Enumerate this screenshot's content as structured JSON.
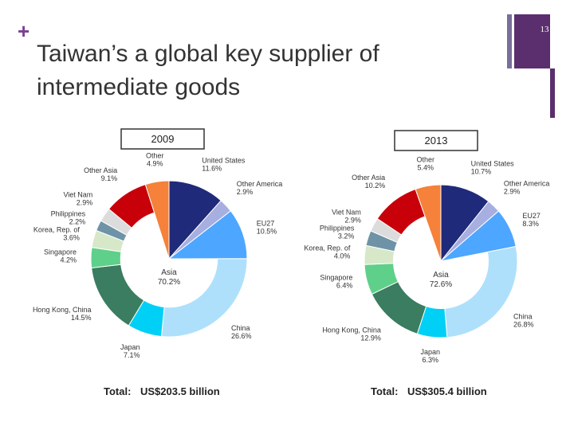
{
  "slide": {
    "marker": "+",
    "title_lines": [
      "Taiwan’s a global key supplier of",
      "intermediate goods"
    ],
    "page_number": "13"
  },
  "chart_data": [
    {
      "type": "pie",
      "title": "2009",
      "categories": [
        "United States",
        "Other America",
        "EU27",
        "China",
        "Japan",
        "Hong Kong, China",
        "Singapore",
        "Korea, Rep. of",
        "Philippines",
        "Viet Nam",
        "Other Asia",
        "Other"
      ],
      "values": [
        11.6,
        2.9,
        10.5,
        26.6,
        7.1,
        14.5,
        4.2,
        3.6,
        2.2,
        2.9,
        9.1,
        4.9
      ],
      "value_labels": [
        "11.6%",
        "2.9%",
        "10.5%",
        "26.6%",
        "7.1%",
        "14.5%",
        "4.2%",
        "3.6%",
        "2.2%",
        "2.9%",
        "9.1%",
        "4.9%"
      ],
      "colors": [
        "#1f2a7a",
        "#a7aee0",
        "#4da6ff",
        "#aee0fb",
        "#00d0f5",
        "#3a7d60",
        "#5ed08a",
        "#d6e8c8",
        "#6e93a6",
        "#dcdcdc",
        "#c8000a",
        "#f5813a"
      ],
      "group": {
        "name": "Asia",
        "value": 70.2,
        "value_label": "70.2%",
        "members": [
          3,
          10
        ]
      },
      "annotations": [
        "Total:",
        "US$203.5 billion"
      ]
    },
    {
      "type": "pie",
      "title": "2013",
      "categories": [
        "United States",
        "Other America",
        "EU27",
        "China",
        "Japan",
        "Hong Kong, China",
        "Singapore",
        "Korea, Rep. of",
        "Philippines",
        "Viet Nam",
        "Other Asia",
        "Other"
      ],
      "values": [
        10.7,
        2.9,
        8.3,
        26.8,
        6.3,
        12.9,
        6.4,
        4.0,
        3.2,
        2.9,
        10.2,
        5.4
      ],
      "value_labels": [
        "10.7%",
        "2.9%",
        "8.3%",
        "26.8%",
        "6.3%",
        "12.9%",
        "6.4%",
        "4.0%",
        "3.2%",
        "2.9%",
        "10.2%",
        "5.4%"
      ],
      "colors": [
        "#1f2a7a",
        "#a7aee0",
        "#4da6ff",
        "#aee0fb",
        "#00d0f5",
        "#3a7d60",
        "#5ed08a",
        "#d6e8c8",
        "#6e93a6",
        "#dcdcdc",
        "#c8000a",
        "#f5813a"
      ],
      "group": {
        "name": "Asia",
        "value": 72.6,
        "value_label": "72.6%",
        "members": [
          3,
          10
        ]
      },
      "annotations": [
        "Total:",
        "US$305.4 billion"
      ]
    }
  ]
}
